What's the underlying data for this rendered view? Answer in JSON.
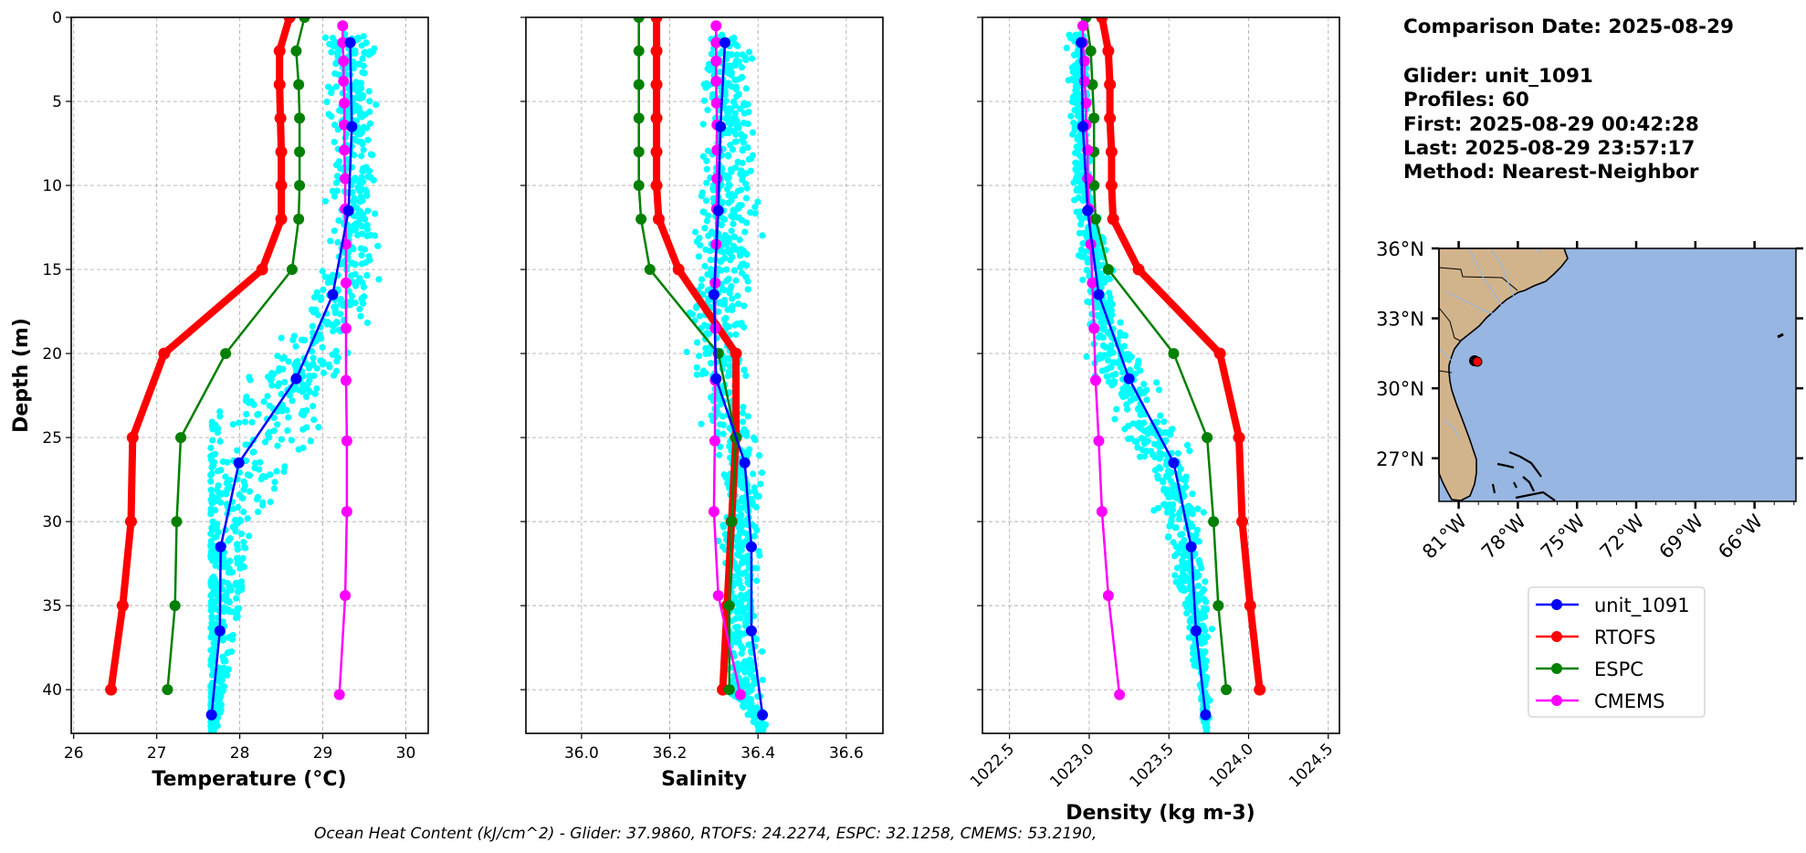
{
  "info": {
    "comparison_date": "Comparison Date: 2025-08-29",
    "glider": "Glider: unit_1091",
    "profiles": "Profiles: 60",
    "first": "First: 2025-08-29 00:42:28",
    "last": "Last: 2025-08-29 23:57:17",
    "method": "Method: Nearest-Neighbor"
  },
  "footer": "Ocean Heat Content (kJ/cm^2) - Glider: 37.9860,  RTOFS: 24.2274,  ESPC: 32.1258,  CMEMS: 53.2190,",
  "colors": {
    "glider": "#0000ff",
    "rtofs": "#ff0000",
    "espc": "#008000",
    "cmems": "#ff00ff",
    "scatter": "#00ffff",
    "land": "#d2b48c",
    "ocean": "#97b6e1",
    "grid": "#b0b0b0"
  },
  "legend": {
    "placement": "below-map",
    "entries": [
      "unit_1091",
      "RTOFS",
      "ESPC",
      "CMEMS"
    ]
  },
  "map": {
    "lon_range": [
      -82,
      -63.9
    ],
    "lat_range": [
      25.15,
      36
    ],
    "lon_ticks": [
      -81,
      -78,
      -75,
      -72,
      -69,
      -66
    ],
    "lon_tick_labels": [
      "81°W",
      "78°W",
      "75°W",
      "72°W",
      "69°W",
      "66°W"
    ],
    "lat_ticks": [
      36,
      33,
      30,
      27
    ],
    "lat_tick_labels": [
      "36°N",
      "33°N",
      "30°N",
      "27°N"
    ],
    "glider_position": {
      "lon": -80.07,
      "lat": 31.2
    }
  },
  "chart_data": [
    {
      "type": "line",
      "title": "",
      "xlabel": "Temperature (°C)",
      "ylabel": "Depth (m)",
      "xlabel_main": "Temperature (",
      "xlabel_sup": "o",
      "xlabel_unit": "C",
      ")": ")",
      "xlim": [
        25.97,
        30.27
      ],
      "ylim": [
        0,
        42.6
      ],
      "y_inverted": true,
      "grid": true,
      "xticks": [
        26,
        27,
        28,
        29,
        30
      ],
      "xtick_labels": [
        "26",
        "27",
        "28",
        "29",
        "30"
      ],
      "yticks": [
        0,
        5,
        10,
        15,
        20,
        25,
        30,
        35,
        40
      ],
      "ytick_labels": [
        "0",
        "5",
        "10",
        "15",
        "20",
        "25",
        "30",
        "35",
        "40"
      ],
      "scatter_envelope": [
        [
          1,
          28.8,
          29.7
        ],
        [
          2.5,
          28.95,
          29.75
        ],
        [
          15,
          28.95,
          29.75
        ],
        [
          17,
          28.6,
          29.75
        ],
        [
          20,
          28.2,
          29.6
        ],
        [
          23,
          27.65,
          29.3
        ],
        [
          27,
          27.65,
          28.6
        ],
        [
          31,
          27.65,
          28.1
        ],
        [
          37,
          27.65,
          27.95
        ],
        [
          42.6,
          27.65,
          27.72
        ]
      ],
      "series": [
        {
          "name": "RTOFS",
          "depth": [
            0,
            2,
            4,
            6,
            8,
            10,
            12,
            15,
            20,
            25,
            30,
            35,
            40
          ],
          "values": [
            28.6,
            28.48,
            28.48,
            28.49,
            28.5,
            28.5,
            28.5,
            28.27,
            27.09,
            26.71,
            26.69,
            26.59,
            26.45
          ]
        },
        {
          "name": "ESPC",
          "depth": [
            0,
            2,
            4,
            6,
            8,
            10,
            12,
            15,
            20,
            25,
            30,
            35,
            40
          ],
          "values": [
            28.78,
            28.68,
            28.71,
            28.72,
            28.72,
            28.72,
            28.71,
            28.63,
            27.83,
            27.29,
            27.24,
            27.22,
            27.13
          ]
        },
        {
          "name": "CMEMS",
          "depth": [
            0.5,
            1.5,
            2.6,
            3.8,
            5.1,
            6.4,
            7.9,
            9.6,
            11.4,
            13.5,
            15.8,
            18.5,
            21.6,
            25.2,
            29.4,
            34.4,
            40.3
          ],
          "values": [
            29.24,
            29.24,
            29.25,
            29.25,
            29.26,
            29.26,
            29.26,
            29.27,
            29.27,
            29.28,
            29.28,
            29.28,
            29.28,
            29.29,
            29.29,
            29.27,
            29.2
          ]
        },
        {
          "name": "unit_1091",
          "depth": [
            1.5,
            6.5,
            11.5,
            16.5,
            21.5,
            26.5,
            31.5,
            36.5,
            41.5
          ],
          "values": [
            29.33,
            29.35,
            29.31,
            29.12,
            28.68,
            27.99,
            27.77,
            27.76,
            27.66
          ]
        }
      ]
    },
    {
      "type": "line",
      "title": "",
      "xlabel": "Salinity",
      "ylabel": "",
      "xlim": [
        35.874,
        36.683
      ],
      "ylim": [
        0,
        42.6
      ],
      "y_inverted": true,
      "grid": true,
      "xticks": [
        36.0,
        36.2,
        36.4,
        36.6
      ],
      "xtick_labels": [
        "36.0",
        "36.2",
        "36.4",
        "36.6"
      ],
      "yticks": [
        0,
        5,
        10,
        15,
        20,
        25,
        30,
        35,
        40
      ],
      "scatter_envelope": [
        [
          1,
          36.25,
          36.41
        ],
        [
          12,
          36.25,
          36.42
        ],
        [
          16,
          36.22,
          36.41
        ],
        [
          20,
          36.22,
          36.4
        ],
        [
          24,
          36.25,
          36.41
        ],
        [
          26,
          36.3,
          36.42
        ],
        [
          40,
          36.31,
          36.42
        ],
        [
          42.6,
          36.405,
          36.42
        ]
      ],
      "series": [
        {
          "name": "RTOFS",
          "depth": [
            0,
            2,
            4,
            6,
            8,
            10,
            12,
            15,
            20,
            25,
            30,
            35,
            40
          ],
          "values": [
            36.17,
            36.17,
            36.17,
            36.17,
            36.17,
            36.17,
            36.175,
            36.22,
            36.35,
            36.35,
            36.34,
            36.33,
            36.32
          ]
        },
        {
          "name": "ESPC",
          "depth": [
            0,
            2,
            4,
            6,
            8,
            10,
            12,
            15,
            20,
            25,
            30,
            35,
            40
          ],
          "values": [
            36.13,
            36.13,
            36.13,
            36.13,
            36.13,
            36.13,
            36.135,
            36.155,
            36.31,
            36.35,
            36.34,
            36.335,
            36.335
          ]
        },
        {
          "name": "CMEMS",
          "depth": [
            0.5,
            1.5,
            2.6,
            3.8,
            5.1,
            6.4,
            7.9,
            9.6,
            11.4,
            13.5,
            15.8,
            18.5,
            21.6,
            25.2,
            29.4,
            34.4,
            40.3
          ],
          "values": [
            36.305,
            36.305,
            36.305,
            36.305,
            36.306,
            36.307,
            36.307,
            36.307,
            36.306,
            36.305,
            36.303,
            36.303,
            36.303,
            36.302,
            36.3,
            36.31,
            36.36
          ]
        },
        {
          "name": "unit_1091",
          "depth": [
            1.5,
            6.5,
            11.5,
            16.5,
            21.5,
            26.5,
            31.5,
            36.5,
            41.5
          ],
          "values": [
            36.325,
            36.315,
            36.31,
            36.3,
            36.305,
            36.37,
            36.385,
            36.385,
            36.41
          ]
        }
      ]
    },
    {
      "type": "line",
      "title": "",
      "xlabel": "Density (kg m-3)",
      "ylabel": "",
      "xlim": [
        1022.33,
        1024.57
      ],
      "ylim": [
        0,
        42.6
      ],
      "y_inverted": true,
      "grid": true,
      "xticks": [
        1022.5,
        1023.0,
        1023.5,
        1024.0,
        1024.5
      ],
      "xtick_labels": [
        "1022.5",
        "1023.0",
        "1023.5",
        "1024.0",
        "1024.5"
      ],
      "yticks": [
        0,
        5,
        10,
        15,
        20,
        25,
        30,
        35,
        40
      ],
      "scatter_envelope": [
        [
          1,
          1022.85,
          1023.0
        ],
        [
          10,
          1022.87,
          1023.05
        ],
        [
          16,
          1022.92,
          1023.2
        ],
        [
          20,
          1022.95,
          1023.35
        ],
        [
          24,
          1023.1,
          1023.6
        ],
        [
          28,
          1023.35,
          1023.75
        ],
        [
          35,
          1023.55,
          1023.78
        ],
        [
          42.6,
          1023.72,
          1023.76
        ]
      ],
      "series": [
        {
          "name": "RTOFS",
          "depth": [
            0,
            2,
            4,
            6,
            8,
            10,
            12,
            15,
            20,
            25,
            30,
            35,
            40
          ],
          "values": [
            1023.08,
            1023.12,
            1023.13,
            1023.13,
            1023.14,
            1023.14,
            1023.15,
            1023.31,
            1023.82,
            1023.94,
            1023.96,
            1024.01,
            1024.07
          ]
        },
        {
          "name": "ESPC",
          "depth": [
            0,
            2,
            4,
            6,
            8,
            10,
            12,
            15,
            20,
            25,
            30,
            35,
            40
          ],
          "values": [
            1022.98,
            1023.01,
            1023.02,
            1023.03,
            1023.03,
            1023.03,
            1023.04,
            1023.12,
            1023.53,
            1023.74,
            1023.78,
            1023.81,
            1023.86
          ]
        },
        {
          "name": "CMEMS",
          "depth": [
            0.5,
            1.5,
            2.6,
            3.8,
            5.1,
            6.4,
            7.9,
            9.6,
            11.4,
            13.5,
            15.8,
            18.5,
            21.6,
            25.2,
            29.4,
            34.4,
            40.3
          ],
          "values": [
            1022.96,
            1022.96,
            1022.97,
            1022.97,
            1022.98,
            1022.98,
            1022.99,
            1022.99,
            1023.0,
            1023.01,
            1023.02,
            1023.03,
            1023.04,
            1023.06,
            1023.08,
            1023.12,
            1023.19
          ]
        },
        {
          "name": "unit_1091",
          "depth": [
            1.5,
            6.5,
            11.5,
            16.5,
            21.5,
            26.5,
            31.5,
            36.5,
            41.5
          ],
          "values": [
            1022.95,
            1022.96,
            1022.99,
            1023.06,
            1023.25,
            1023.53,
            1023.64,
            1023.67,
            1023.73
          ]
        }
      ]
    }
  ]
}
